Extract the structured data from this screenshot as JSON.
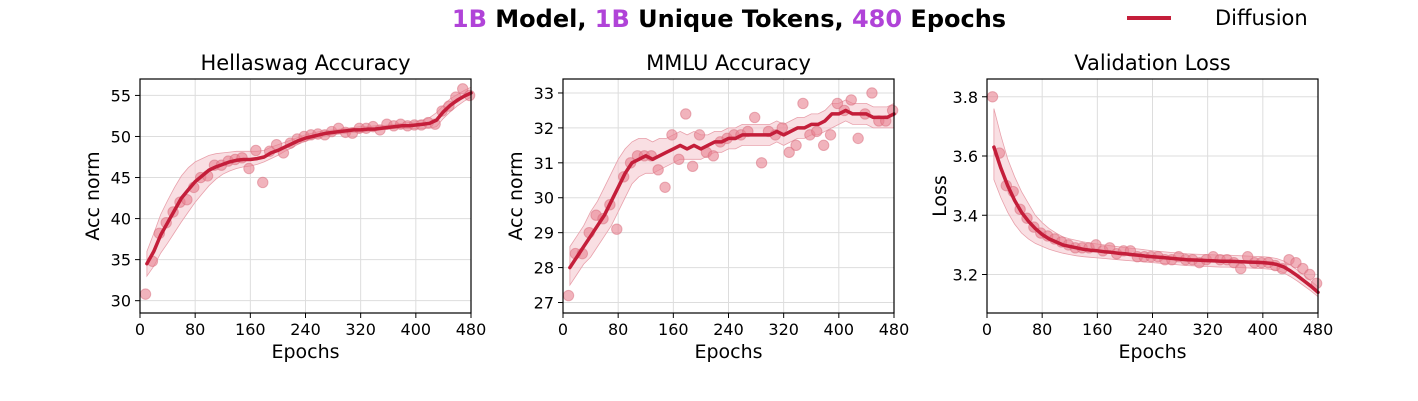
{
  "title": {
    "parts": [
      {
        "text": "1B",
        "highlight": true
      },
      {
        "text": " Model, ",
        "highlight": false
      },
      {
        "text": "1B",
        "highlight": true
      },
      {
        "text": " Unique Tokens, ",
        "highlight": false
      },
      {
        "text": "480",
        "highlight": true
      },
      {
        "text": " Epochs",
        "highlight": false
      }
    ],
    "highlight_color": "#b043d8",
    "text_color": "#000000"
  },
  "legend": {
    "label": "Diffusion",
    "color": "#c41e3a",
    "placement": "top-right"
  },
  "colors": {
    "line": "#c41e3a",
    "points": "#e8808f",
    "band": "#f4c4cc",
    "grid": "#dddddd"
  },
  "chart_data": [
    {
      "type": "line",
      "title": "Hellaswag Accuracy",
      "xlabel": "Epochs",
      "ylabel": "Acc norm",
      "xlim": [
        0,
        480
      ],
      "ylim": [
        28.5,
        57
      ],
      "xticks": [
        0,
        80,
        160,
        240,
        320,
        400,
        480
      ],
      "yticks": [
        30,
        35,
        40,
        45,
        50,
        55
      ],
      "grid": true,
      "series": [
        {
          "name": "Diffusion",
          "kind": "smoothed",
          "x": [
            10,
            20,
            30,
            40,
            50,
            60,
            70,
            80,
            90,
            100,
            110,
            120,
            130,
            140,
            150,
            160,
            170,
            180,
            190,
            200,
            210,
            220,
            230,
            240,
            250,
            260,
            270,
            280,
            290,
            300,
            310,
            320,
            330,
            340,
            350,
            360,
            370,
            380,
            390,
            400,
            410,
            420,
            430,
            440,
            450,
            460,
            470,
            480
          ],
          "y": [
            34.5,
            36.0,
            38.0,
            39.5,
            41.0,
            42.5,
            43.5,
            44.5,
            45.2,
            45.9,
            46.3,
            46.6,
            46.9,
            47.1,
            47.2,
            47.2,
            47.3,
            47.5,
            48.0,
            48.3,
            48.7,
            49.1,
            49.5,
            49.8,
            50.0,
            50.2,
            50.4,
            50.5,
            50.6,
            50.7,
            50.8,
            50.8,
            50.9,
            50.9,
            51.0,
            51.1,
            51.2,
            51.3,
            51.3,
            51.4,
            51.5,
            51.6,
            52.0,
            53.0,
            53.8,
            54.4,
            54.9,
            55.3
          ],
          "band_lower": [
            33.0,
            34.2,
            35.8,
            37.0,
            38.3,
            39.6,
            40.8,
            42.0,
            43.0,
            44.0,
            44.8,
            45.4,
            45.8,
            46.1,
            46.3,
            46.4,
            46.6,
            46.9,
            47.3,
            47.7,
            48.2,
            48.6,
            49.1,
            49.4,
            49.7,
            49.9,
            50.1,
            50.2,
            50.3,
            50.4,
            50.5,
            50.5,
            50.6,
            50.7,
            50.8,
            50.9,
            51.0,
            51.0,
            51.0,
            51.0,
            51.0,
            51.0,
            51.2,
            52.2,
            53.0,
            53.7,
            54.3,
            54.8
          ],
          "band_upper": [
            36.0,
            38.2,
            40.5,
            42.2,
            43.8,
            45.2,
            46.2,
            46.9,
            47.3,
            47.7,
            47.9,
            48.0,
            48.1,
            48.2,
            48.2,
            48.2,
            48.2,
            48.3,
            48.7,
            49.0,
            49.3,
            49.6,
            49.9,
            50.2,
            50.4,
            50.6,
            50.7,
            50.8,
            50.9,
            51.0,
            51.1,
            51.2,
            51.2,
            51.3,
            51.3,
            51.4,
            51.5,
            51.6,
            51.7,
            51.8,
            52.0,
            52.3,
            52.9,
            53.8,
            54.6,
            55.1,
            55.6,
            56.0
          ]
        },
        {
          "name": "Diffusion",
          "kind": "raw",
          "x": [
            8,
            18,
            28,
            38,
            48,
            58,
            68,
            78,
            88,
            98,
            108,
            118,
            128,
            138,
            148,
            158,
            168,
            178,
            188,
            198,
            208,
            218,
            228,
            238,
            248,
            258,
            268,
            278,
            288,
            298,
            308,
            318,
            328,
            338,
            348,
            358,
            368,
            378,
            388,
            398,
            408,
            418,
            428,
            438,
            448,
            458,
            468,
            478
          ],
          "y": [
            30.8,
            34.8,
            38.2,
            39.5,
            40.8,
            42.0,
            42.3,
            43.8,
            45.0,
            45.2,
            46.5,
            46.5,
            47.0,
            47.2,
            47.4,
            46.1,
            48.3,
            44.4,
            48.2,
            49.0,
            48.0,
            49.2,
            49.7,
            50.0,
            50.2,
            50.3,
            50.2,
            50.6,
            51.0,
            50.5,
            50.4,
            51.0,
            51.0,
            51.2,
            50.8,
            51.5,
            51.3,
            51.5,
            51.3,
            51.4,
            51.4,
            51.7,
            51.5,
            53.1,
            53.7,
            54.8,
            55.8,
            55.0
          ]
        }
      ]
    },
    {
      "type": "line",
      "title": "MMLU Accuracy",
      "xlabel": "Epochs",
      "ylabel": "Acc norm",
      "xlim": [
        0,
        480
      ],
      "ylim": [
        26.7,
        33.4
      ],
      "xticks": [
        0,
        80,
        160,
        240,
        320,
        400,
        480
      ],
      "yticks": [
        27,
        28,
        29,
        30,
        31,
        32,
        33
      ],
      "grid": true,
      "series": [
        {
          "name": "Diffusion",
          "kind": "smoothed",
          "x": [
            10,
            20,
            30,
            40,
            50,
            60,
            70,
            80,
            90,
            100,
            110,
            120,
            130,
            140,
            150,
            160,
            170,
            180,
            190,
            200,
            210,
            220,
            230,
            240,
            250,
            260,
            270,
            280,
            290,
            300,
            310,
            320,
            330,
            340,
            350,
            360,
            370,
            380,
            390,
            400,
            410,
            420,
            430,
            440,
            450,
            460,
            470,
            480
          ],
          "y": [
            28.0,
            28.3,
            28.6,
            28.9,
            29.2,
            29.5,
            29.9,
            30.3,
            30.7,
            31.0,
            31.1,
            31.2,
            31.1,
            31.2,
            31.3,
            31.4,
            31.5,
            31.4,
            31.5,
            31.4,
            31.5,
            31.6,
            31.6,
            31.7,
            31.7,
            31.8,
            31.8,
            31.8,
            31.8,
            31.8,
            31.9,
            31.8,
            31.9,
            32.0,
            32.0,
            32.1,
            32.1,
            32.2,
            32.4,
            32.4,
            32.5,
            32.4,
            32.4,
            32.4,
            32.3,
            32.3,
            32.3,
            32.4
          ],
          "band_lower": [
            27.5,
            27.8,
            28.1,
            28.3,
            28.6,
            28.9,
            29.2,
            29.6,
            30.0,
            30.4,
            30.6,
            30.7,
            30.7,
            30.8,
            30.9,
            31.0,
            31.1,
            31.1,
            31.1,
            31.1,
            31.2,
            31.3,
            31.3,
            31.4,
            31.4,
            31.5,
            31.5,
            31.5,
            31.5,
            31.5,
            31.6,
            31.5,
            31.6,
            31.7,
            31.7,
            31.8,
            31.8,
            31.9,
            32.0,
            32.1,
            32.2,
            32.1,
            32.1,
            32.1,
            32.0,
            32.0,
            32.0,
            32.0
          ],
          "band_upper": [
            28.6,
            28.9,
            29.2,
            29.6,
            29.9,
            30.3,
            30.7,
            31.1,
            31.4,
            31.6,
            31.7,
            31.7,
            31.6,
            31.7,
            31.7,
            31.8,
            31.9,
            31.8,
            31.9,
            31.8,
            31.8,
            31.9,
            31.9,
            32.0,
            32.0,
            32.1,
            32.1,
            32.1,
            32.1,
            32.1,
            32.2,
            32.1,
            32.2,
            32.3,
            32.3,
            32.4,
            32.4,
            32.5,
            32.7,
            32.7,
            32.8,
            32.7,
            32.7,
            32.7,
            32.6,
            32.6,
            32.6,
            32.7
          ]
        },
        {
          "name": "Diffusion",
          "kind": "raw",
          "x": [
            8,
            18,
            28,
            38,
            48,
            58,
            68,
            78,
            88,
            98,
            108,
            118,
            128,
            138,
            148,
            158,
            168,
            178,
            188,
            198,
            208,
            218,
            228,
            238,
            248,
            258,
            268,
            278,
            288,
            298,
            308,
            318,
            328,
            338,
            348,
            358,
            368,
            378,
            388,
            398,
            408,
            418,
            428,
            438,
            448,
            458,
            468,
            478
          ],
          "y": [
            27.2,
            28.4,
            28.4,
            29.0,
            29.5,
            29.4,
            29.8,
            29.1,
            30.6,
            31.0,
            31.2,
            31.2,
            31.2,
            30.8,
            30.3,
            31.8,
            31.1,
            32.4,
            30.9,
            31.8,
            31.3,
            31.2,
            31.6,
            31.7,
            31.8,
            31.8,
            31.9,
            32.3,
            31.0,
            31.9,
            31.8,
            32.0,
            31.3,
            31.5,
            32.7,
            31.8,
            31.9,
            31.5,
            31.8,
            32.7,
            32.5,
            32.8,
            31.7,
            32.4,
            33.0,
            32.2,
            32.2,
            32.5
          ]
        }
      ]
    },
    {
      "type": "line",
      "title": "Validation Loss",
      "xlabel": "Epochs",
      "ylabel": "Loss",
      "xlim": [
        0,
        480
      ],
      "ylim": [
        3.07,
        3.86
      ],
      "xticks": [
        0,
        80,
        160,
        240,
        320,
        400,
        480
      ],
      "yticks": [
        3.2,
        3.4,
        3.6,
        3.8
      ],
      "grid": true,
      "series": [
        {
          "name": "Diffusion",
          "kind": "smoothed",
          "x": [
            10,
            20,
            30,
            40,
            50,
            60,
            70,
            80,
            90,
            100,
            110,
            120,
            130,
            140,
            150,
            160,
            170,
            180,
            190,
            200,
            210,
            220,
            230,
            240,
            250,
            260,
            270,
            280,
            290,
            300,
            310,
            320,
            330,
            340,
            350,
            360,
            370,
            380,
            390,
            400,
            410,
            420,
            430,
            440,
            450,
            460,
            470,
            480
          ],
          "y": [
            3.63,
            3.56,
            3.5,
            3.45,
            3.41,
            3.38,
            3.355,
            3.335,
            3.32,
            3.31,
            3.3,
            3.295,
            3.29,
            3.285,
            3.282,
            3.28,
            3.277,
            3.275,
            3.272,
            3.27,
            3.267,
            3.265,
            3.262,
            3.26,
            3.258,
            3.256,
            3.254,
            3.252,
            3.25,
            3.249,
            3.248,
            3.247,
            3.246,
            3.245,
            3.245,
            3.244,
            3.243,
            3.242,
            3.241,
            3.24,
            3.238,
            3.234,
            3.226,
            3.212,
            3.196,
            3.178,
            3.16,
            3.14
          ],
          "band_lower": [
            3.52,
            3.46,
            3.41,
            3.37,
            3.34,
            3.32,
            3.305,
            3.295,
            3.285,
            3.278,
            3.272,
            3.267,
            3.263,
            3.26,
            3.258,
            3.256,
            3.254,
            3.252,
            3.25,
            3.248,
            3.246,
            3.244,
            3.242,
            3.24,
            3.238,
            3.236,
            3.234,
            3.232,
            3.23,
            3.229,
            3.228,
            3.227,
            3.226,
            3.225,
            3.225,
            3.224,
            3.223,
            3.222,
            3.221,
            3.22,
            3.218,
            3.214,
            3.206,
            3.193,
            3.178,
            3.161,
            3.144,
            3.125
          ],
          "band_upper": [
            3.76,
            3.67,
            3.59,
            3.53,
            3.48,
            3.44,
            3.4,
            3.375,
            3.355,
            3.34,
            3.327,
            3.32,
            3.315,
            3.31,
            3.306,
            3.303,
            3.3,
            3.297,
            3.294,
            3.291,
            3.288,
            3.286,
            3.283,
            3.28,
            3.278,
            3.276,
            3.274,
            3.272,
            3.27,
            3.269,
            3.268,
            3.267,
            3.266,
            3.265,
            3.265,
            3.264,
            3.263,
            3.262,
            3.261,
            3.26,
            3.258,
            3.254,
            3.246,
            3.232,
            3.215,
            3.197,
            3.178,
            3.158
          ]
        },
        {
          "name": "Diffusion",
          "kind": "raw",
          "x": [
            8,
            18,
            28,
            38,
            48,
            58,
            68,
            78,
            88,
            98,
            108,
            118,
            128,
            138,
            148,
            158,
            168,
            178,
            188,
            198,
            208,
            218,
            228,
            238,
            248,
            258,
            268,
            278,
            288,
            298,
            308,
            318,
            328,
            338,
            348,
            358,
            368,
            378,
            388,
            398,
            408,
            418,
            428,
            438,
            448,
            458,
            468,
            478
          ],
          "y": [
            3.8,
            3.61,
            3.5,
            3.48,
            3.42,
            3.39,
            3.36,
            3.34,
            3.33,
            3.32,
            3.31,
            3.3,
            3.29,
            3.29,
            3.29,
            3.3,
            3.28,
            3.29,
            3.27,
            3.28,
            3.28,
            3.26,
            3.26,
            3.26,
            3.26,
            3.25,
            3.25,
            3.26,
            3.25,
            3.25,
            3.24,
            3.25,
            3.26,
            3.25,
            3.25,
            3.24,
            3.22,
            3.26,
            3.24,
            3.24,
            3.24,
            3.23,
            3.22,
            3.25,
            3.24,
            3.22,
            3.2,
            3.17
          ]
        }
      ]
    }
  ]
}
